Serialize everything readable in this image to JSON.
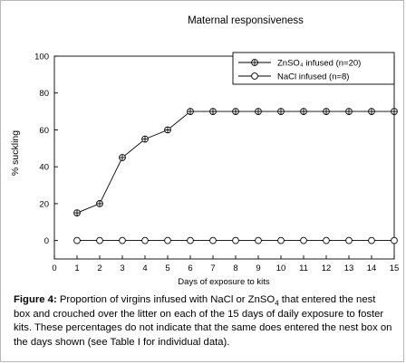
{
  "chart_data": {
    "type": "line",
    "title": "Maternal responsiveness",
    "xlabel": "Days of exposure to kits",
    "ylabel": "% suckling",
    "xlim": [
      0,
      15
    ],
    "ylim": [
      -10,
      100
    ],
    "x_ticks": [
      0,
      1,
      2,
      3,
      4,
      5,
      6,
      7,
      8,
      9,
      10,
      11,
      12,
      13,
      14,
      15
    ],
    "y_ticks": [
      0,
      20,
      40,
      60,
      80,
      100
    ],
    "grid": false,
    "legend_position": "top-right",
    "series": [
      {
        "name": "ZnSO₄ infused (n=20)",
        "marker": "circle-plus",
        "x": [
          1,
          2,
          3,
          4,
          5,
          6,
          7,
          8,
          9,
          10,
          11,
          12,
          13,
          14,
          15
        ],
        "values": [
          15,
          20,
          45,
          55,
          60,
          70,
          70,
          70,
          70,
          70,
          70,
          70,
          70,
          70,
          70
        ]
      },
      {
        "name": "NaCl infused (n=8)",
        "marker": "open-circle",
        "x": [
          1,
          2,
          3,
          4,
          5,
          6,
          7,
          8,
          9,
          10,
          11,
          12,
          13,
          14,
          15
        ],
        "values": [
          0,
          0,
          0,
          0,
          0,
          0,
          0,
          0,
          0,
          0,
          0,
          0,
          0,
          0,
          0
        ]
      }
    ]
  },
  "caption": {
    "label": "Figure 4:",
    "text_1": " Proportion of virgins infused with NaCl or ZnSO",
    "subscript": "4",
    "text_2": " that entered the nest box and crouched over the litter on each of the 15 days of daily exposure to foster kits.  These percentages do not indicate that the same does entered the nest box on the days shown (see Table I for individual data)."
  }
}
